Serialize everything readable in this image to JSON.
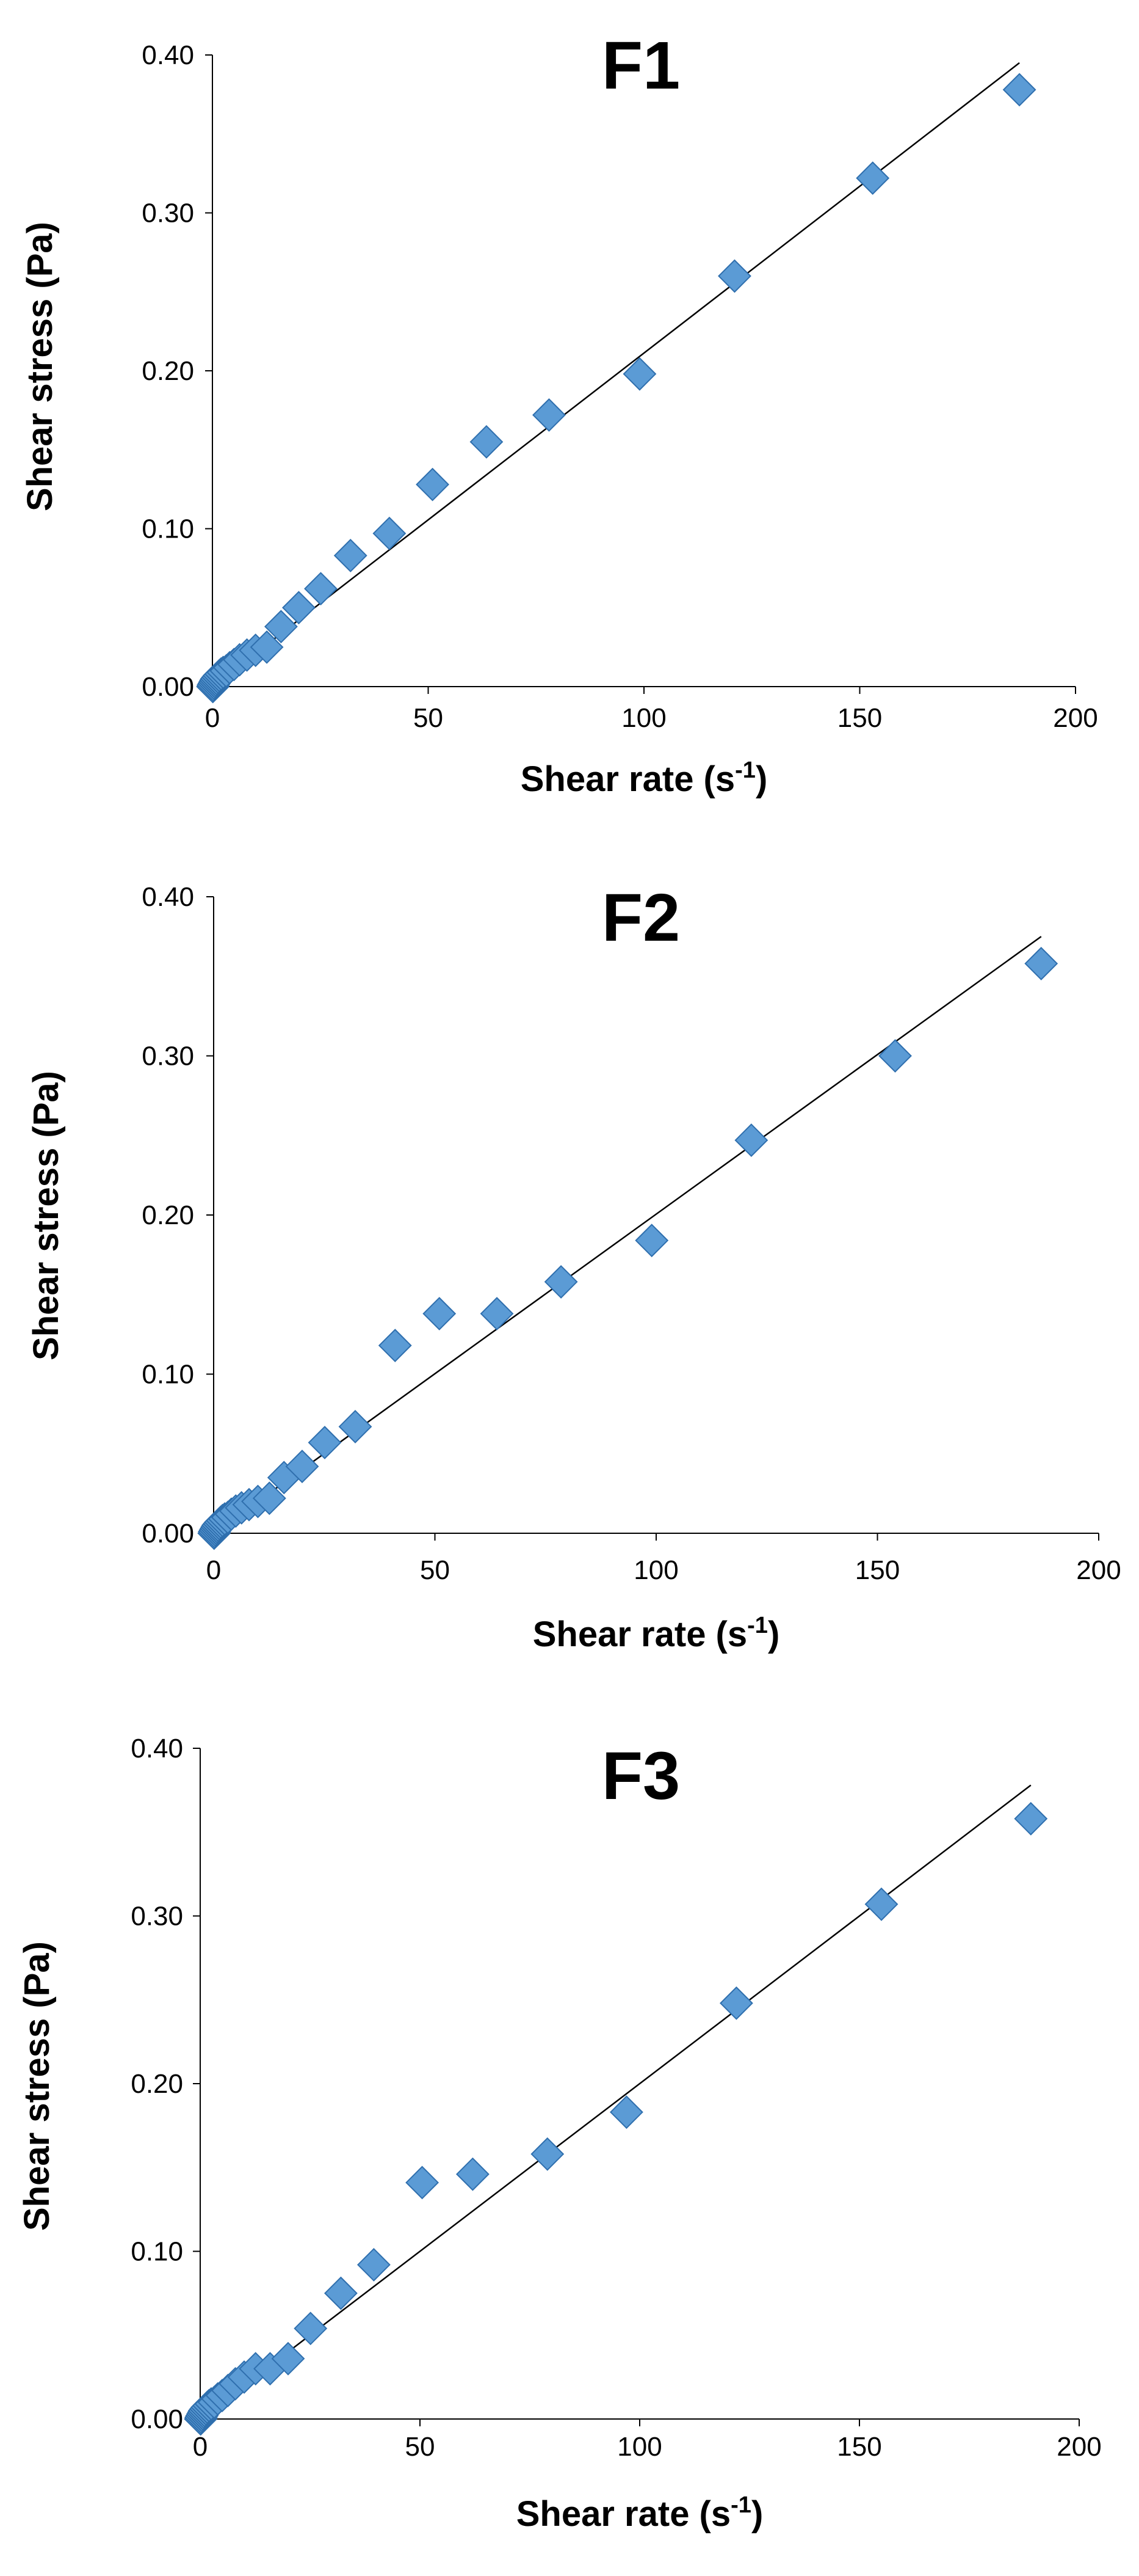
{
  "chart_data": [
    {
      "type": "scatter",
      "title": "F1",
      "xlabel": "Shear rate (s",
      "xlabel_sup": "-1",
      "xlabel_end": ")",
      "ylabel": "Shear stress (Pa)",
      "xlim": [
        0,
        200
      ],
      "ylim": [
        0,
        0.4
      ],
      "xticks": [
        0,
        50,
        100,
        150,
        200
      ],
      "xtick_labels": [
        "0",
        "50",
        "100",
        "150",
        "200"
      ],
      "yticks": [
        0,
        0.1,
        0.2,
        0.3,
        0.4
      ],
      "ytick_labels": [
        "0.00",
        "0.10",
        "0.20",
        "0.30",
        "0.40"
      ],
      "marker_color": "#5b9bd5",
      "series": [
        {
          "name": "F1",
          "x": [
            0.1,
            0.2,
            0.4,
            0.6,
            0.8,
            1.0,
            1.3,
            1.6,
            2.0,
            2.5,
            3.2,
            4.0,
            5.0,
            6.3,
            8.0,
            10.0,
            12.6,
            15.9,
            20.0,
            25.1,
            32.0,
            41.0,
            51.0,
            63.5,
            78.0,
            99.0,
            121.0,
            153.0,
            187.0
          ],
          "y": [
            0.0,
            0.001,
            0.002,
            0.003,
            0.004,
            0.005,
            0.006,
            0.007,
            0.008,
            0.009,
            0.01,
            0.012,
            0.014,
            0.017,
            0.02,
            0.023,
            0.025,
            0.038,
            0.05,
            0.062,
            0.083,
            0.097,
            0.128,
            0.155,
            0.172,
            0.198,
            0.26,
            0.322,
            0.378
          ]
        }
      ],
      "trendline": {
        "x": [
          0,
          187
        ],
        "y": [
          0.0,
          0.395
        ]
      }
    },
    {
      "type": "scatter",
      "title": "F2",
      "xlabel": "Shear rate (s",
      "xlabel_sup": "-1",
      "xlabel_end": ")",
      "ylabel": "Shear stress (Pa)",
      "xlim": [
        0,
        200
      ],
      "ylim": [
        0,
        0.4
      ],
      "xticks": [
        0,
        50,
        100,
        150,
        200
      ],
      "xtick_labels": [
        "0",
        "50",
        "100",
        "150",
        "200"
      ],
      "yticks": [
        0,
        0.1,
        0.2,
        0.3,
        0.4
      ],
      "ytick_labels": [
        "0.00",
        "0.10",
        "0.20",
        "0.30",
        "0.40"
      ],
      "marker_color": "#5b9bd5",
      "series": [
        {
          "name": "F2",
          "x": [
            0.1,
            0.2,
            0.4,
            0.6,
            0.8,
            1.0,
            1.3,
            1.6,
            2.0,
            2.5,
            3.2,
            4.0,
            5.0,
            6.3,
            8.0,
            10.0,
            12.6,
            15.9,
            20.0,
            25.1,
            32.0,
            41.0,
            51.0,
            64.0,
            78.5,
            99.0,
            121.5,
            154.0,
            187.0
          ],
          "y": [
            0.0,
            0.001,
            0.002,
            0.003,
            0.004,
            0.005,
            0.006,
            0.007,
            0.008,
            0.009,
            0.01,
            0.012,
            0.014,
            0.016,
            0.018,
            0.02,
            0.022,
            0.035,
            0.042,
            0.057,
            0.067,
            0.118,
            0.138,
            0.138,
            0.158,
            0.184,
            0.247,
            0.3,
            0.358
          ]
        }
      ],
      "trendline": {
        "x": [
          0,
          187
        ],
        "y": [
          0.0,
          0.375
        ]
      }
    },
    {
      "type": "scatter",
      "title": "F3",
      "xlabel": "Shear rate (s",
      "xlabel_sup": "-1",
      "xlabel_end": ")",
      "ylabel": "Shear  stress (Pa)",
      "xlim": [
        0,
        200
      ],
      "ylim": [
        0,
        0.4
      ],
      "xticks": [
        0,
        50,
        100,
        150,
        200
      ],
      "xtick_labels": [
        "0",
        "50",
        "100",
        "150",
        "200"
      ],
      "yticks": [
        0,
        0.1,
        0.2,
        0.3,
        0.4
      ],
      "ytick_labels": [
        "0.00",
        "0.10",
        "0.20",
        "0.30",
        "0.40"
      ],
      "marker_color": "#5b9bd5",
      "series": [
        {
          "name": "F3",
          "x": [
            0.1,
            0.2,
            0.4,
            0.6,
            0.8,
            1.0,
            1.3,
            1.6,
            2.0,
            2.5,
            3.2,
            4.0,
            5.0,
            6.3,
            8.0,
            10.0,
            12.6,
            15.9,
            20.0,
            25.1,
            32.0,
            39.5,
            50.5,
            62.0,
            79.0,
            97.0,
            122.0,
            155.0,
            189.0
          ],
          "y": [
            0.0,
            0.001,
            0.002,
            0.003,
            0.004,
            0.005,
            0.006,
            0.007,
            0.008,
            0.009,
            0.01,
            0.012,
            0.014,
            0.017,
            0.021,
            0.025,
            0.03,
            0.03,
            0.036,
            0.054,
            0.075,
            0.092,
            0.141,
            0.146,
            0.158,
            0.183,
            0.248,
            0.307,
            0.358
          ]
        }
      ],
      "trendline": {
        "x": [
          0,
          189
        ],
        "y": [
          0.0,
          0.378
        ]
      }
    }
  ]
}
